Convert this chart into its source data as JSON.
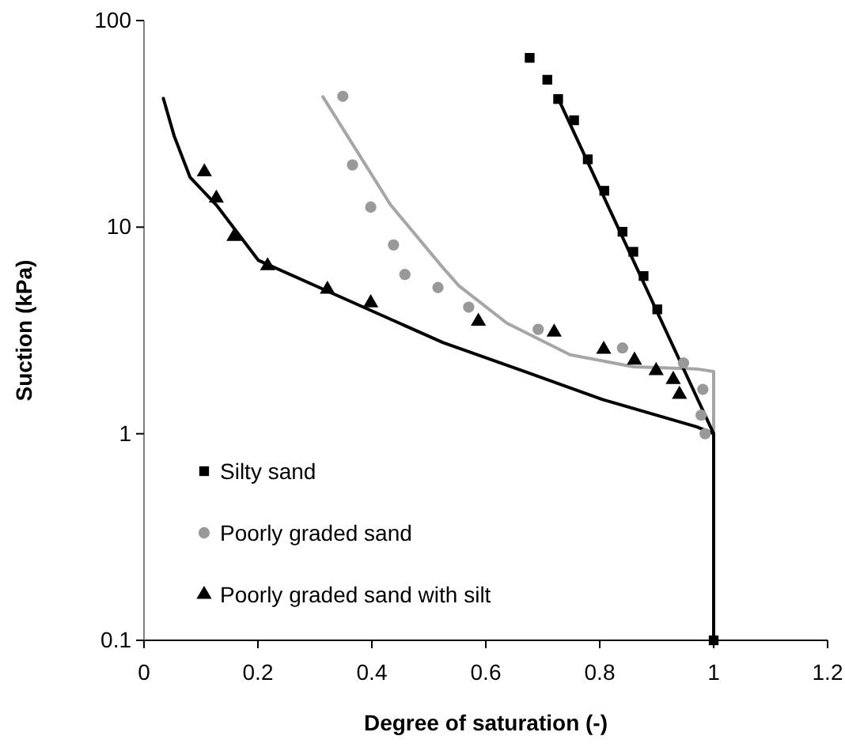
{
  "chart_data": {
    "type": "scatter",
    "xlabel": "Degree of saturation (-)",
    "ylabel": "Suction (kPa)",
    "xlim": [
      0,
      1.2
    ],
    "xticks": [
      0,
      0.2,
      0.4,
      0.6,
      0.8,
      1,
      1.2
    ],
    "ylim": [
      0.1,
      100
    ],
    "yticks": [
      0.1,
      1,
      10,
      100
    ],
    "log": "y",
    "grid": false,
    "legend": "bottom left",
    "series": [
      {
        "type": "line",
        "color": "#a6a6a6",
        "marker": "none",
        "x": [
          0.314,
          0.433,
          0.525,
          0.553,
          0.637,
          0.748,
          0.859,
          0.97,
          1,
          1
        ],
        "values": [
          42.8,
          12.8,
          6.35,
          5.2,
          3.43,
          2.41,
          2.11,
          2.06,
          2,
          1
        ]
      },
      {
        "type": "line",
        "color": "#000000",
        "marker": "none",
        "x": [
          0.034,
          0.053,
          0.081,
          0.127,
          0.201,
          0.322,
          0.525,
          0.664,
          0.803,
          0.97,
          1,
          1
        ],
        "values": [
          42,
          27.6,
          17.4,
          12.8,
          6.9,
          4.9,
          2.76,
          2.02,
          1.47,
          1.08,
          1,
          0.1
        ]
      },
      {
        "type": "line",
        "color": "#000000",
        "marker": "none",
        "x": [
          0.727,
          1,
          1
        ],
        "values": [
          42,
          1,
          0.1
        ]
      },
      {
        "name": "Silty sand",
        "color": "#000000",
        "marker": "square",
        "x": [
          0.677,
          0.708,
          0.727,
          0.755,
          0.779,
          0.808,
          0.84,
          0.859,
          0.877,
          0.901,
          0.952,
          1
        ],
        "values": [
          66,
          51.7,
          41.7,
          32.9,
          21.3,
          15,
          9.5,
          7.6,
          5.8,
          4,
          null,
          0.1
        ]
      },
      {
        "name": "Poorly graded sand",
        "color": "#999999",
        "marker": "circle",
        "x": [
          0.349,
          0.366,
          0.398,
          0.438,
          0.458,
          0.516,
          0.57,
          0.692,
          0.84,
          0.947,
          0.981,
          0.978,
          0.985
        ],
        "values": [
          43,
          20,
          12.5,
          8.2,
          5.9,
          5.1,
          4.1,
          3.2,
          2.6,
          2.2,
          1.64,
          1.23,
          1
        ]
      },
      {
        "name": "Poorly graded sand with silt",
        "color": "#000000",
        "marker": "triangle",
        "x": [
          0.106,
          0.127,
          0.158,
          0.217,
          0.322,
          0.398,
          0.587,
          0.72,
          0.807,
          0.861,
          0.899,
          0.929,
          0.94
        ],
        "values": [
          18.5,
          13.8,
          9,
          6.5,
          5,
          4.3,
          3.5,
          3.1,
          2.56,
          2.27,
          2.02,
          1.83,
          1.55
        ]
      }
    ]
  }
}
